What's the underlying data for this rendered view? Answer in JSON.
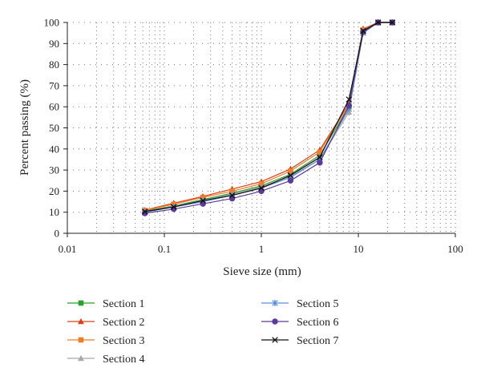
{
  "chart_data": {
    "type": "line",
    "xlabel": "Sieve size (mm)",
    "ylabel": "Percent passing (%)",
    "xscale": "log",
    "xlim": [
      0.01,
      100
    ],
    "ylim": [
      0,
      100
    ],
    "xticks": [
      0.01,
      0.1,
      1,
      10,
      100
    ],
    "xtick_labels": [
      "0.01",
      "0.1",
      "1",
      "10",
      "100"
    ],
    "yticks": [
      0,
      10,
      20,
      30,
      40,
      50,
      60,
      70,
      80,
      90,
      100
    ],
    "grid": "dotted",
    "legend_position": "bottom",
    "x": [
      0.063,
      0.125,
      0.25,
      0.5,
      1,
      2,
      4,
      8,
      11.2,
      16,
      22.4
    ],
    "series": [
      {
        "name": "Section 1",
        "color": "#2ca02c",
        "marker": "square",
        "values": [
          10.5,
          13,
          16,
          19,
          22.5,
          28,
          37,
          60,
          96,
          100,
          100
        ]
      },
      {
        "name": "Section 2",
        "color": "#d9401a",
        "marker": "triangle",
        "values": [
          11,
          14.3,
          17.5,
          21,
          24.5,
          30.5,
          39.5,
          61.5,
          97,
          100,
          100
        ]
      },
      {
        "name": "Section 3",
        "color": "#ee7d2a",
        "marker": "square",
        "values": [
          10.8,
          13.8,
          17,
          20,
          23.5,
          29.5,
          38.5,
          61,
          96.5,
          100,
          100
        ]
      },
      {
        "name": "Section 4",
        "color": "#a8a8a8",
        "marker": "triangle",
        "values": [
          10.2,
          12.8,
          15.5,
          18.5,
          22,
          27,
          35,
          57.5,
          95.5,
          100,
          100
        ]
      },
      {
        "name": "Section 5",
        "color": "#5b8fd6",
        "marker": "asterisk",
        "values": [
          10,
          12.5,
          15,
          18,
          21.5,
          26.5,
          35,
          59,
          95,
          100,
          100
        ]
      },
      {
        "name": "Section 6",
        "color": "#5a3a9a",
        "marker": "circle",
        "values": [
          9.5,
          11.5,
          14,
          16.5,
          20,
          25,
          33.5,
          60.5,
          95.5,
          100,
          100
        ]
      },
      {
        "name": "Section 7",
        "color": "#111111",
        "marker": "x",
        "values": [
          10.3,
          12.5,
          15.5,
          18,
          21.5,
          27.5,
          36,
          63.5,
          96,
          100,
          100
        ]
      }
    ]
  }
}
